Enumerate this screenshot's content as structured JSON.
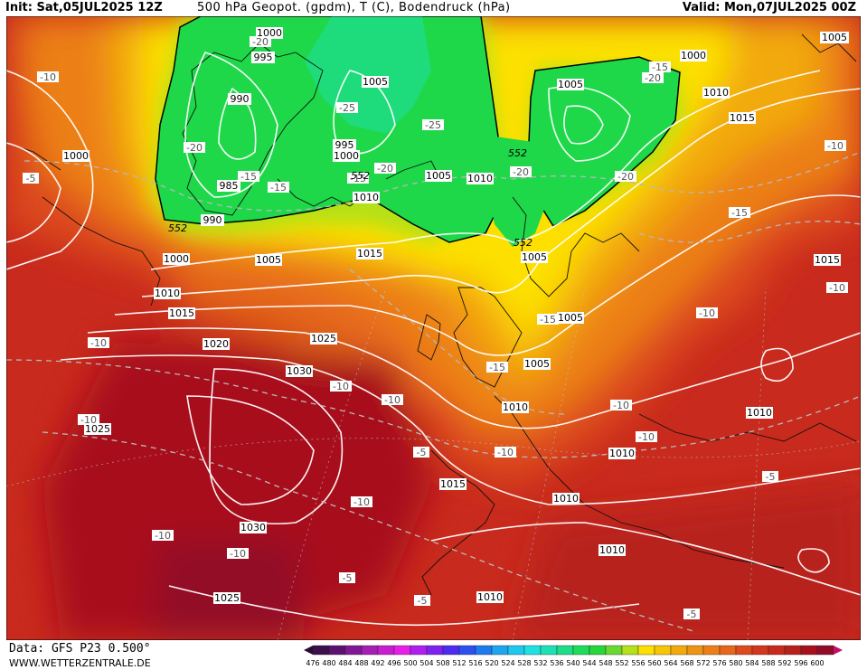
{
  "header": {
    "init": "Init: Sat,05JUL2025 12Z",
    "title": "500 hPa Geopot. (gpdm), T (C), Bodendruck (hPa)",
    "valid": "Valid: Mon,07JUL2025 00Z"
  },
  "footer": {
    "source": "Data: GFS P23 0.500°",
    "site": "WWW.WETTERZENTRALE.DE"
  },
  "colors": {
    "deep_red": "#a80f1c",
    "red": "#c82a1d",
    "red_orange": "#dc4a1e",
    "orange": "#ec7f17",
    "light_orange": "#f2a90c",
    "yellow": "#fde000",
    "light_green": "#69d639",
    "green": "#1ed84a",
    "teal": "#22d8a8"
  },
  "legend": {
    "ticks": [
      "476",
      "480",
      "484",
      "488",
      "492",
      "496",
      "500",
      "504",
      "508",
      "512",
      "516",
      "520",
      "524",
      "528",
      "532",
      "536",
      "540",
      "544",
      "548",
      "552",
      "556",
      "560",
      "564",
      "568",
      "572",
      "576",
      "580",
      "584",
      "588",
      "592",
      "596",
      "600"
    ],
    "colors": [
      "#3b0f4a",
      "#5c1070",
      "#801896",
      "#a61db4",
      "#c81ed0",
      "#e71ee8",
      "#b01eef",
      "#7e21f0",
      "#4d2bf0",
      "#2d4ff0",
      "#1f7af0",
      "#1ea5f0",
      "#1ec8f0",
      "#1ee1e0",
      "#1ee0b5",
      "#1edd88",
      "#1edb5a",
      "#26d63a",
      "#6ad832",
      "#b4e119",
      "#fde000",
      "#f8c406",
      "#f2a90c",
      "#ee9412",
      "#ec7f17",
      "#e6661b",
      "#dc4a1e",
      "#d2361d",
      "#c82a1d",
      "#b8201c",
      "#a80f1c",
      "#930a28"
    ]
  },
  "pressure_labels": [
    "1000",
    "1005",
    "1000",
    "995",
    "990",
    "1005",
    "995",
    "1000",
    "985",
    "990",
    "1010",
    "1005",
    "1010",
    "1005",
    "1015",
    "1000",
    "1005",
    "1010",
    "1015",
    "1020",
    "1025",
    "1030",
    "1025",
    "1030",
    "1025",
    "1015",
    "1010",
    "1005",
    "1010",
    "1010",
    "1010",
    "1015",
    "1010",
    "1010",
    "1010",
    "1015",
    "1005",
    "1005",
    "1000",
    "1005",
    "1010"
  ],
  "temperature_labels": [
    "-20",
    "-10",
    "-5",
    "-20",
    "-15",
    "-25",
    "-25",
    "-20",
    "-15",
    "-15",
    "-20",
    "-20",
    "-20",
    "-15",
    "-10",
    "-10",
    "-10",
    "-10",
    "-15",
    "-10",
    "-10",
    "-10",
    "-5",
    "-10",
    "-10",
    "-10",
    "-5",
    "-10",
    "-5",
    "-5",
    "-15",
    "-15",
    "-10",
    "-10",
    "-5"
  ],
  "height_labels": [
    "552",
    "552",
    "552",
    "552"
  ]
}
